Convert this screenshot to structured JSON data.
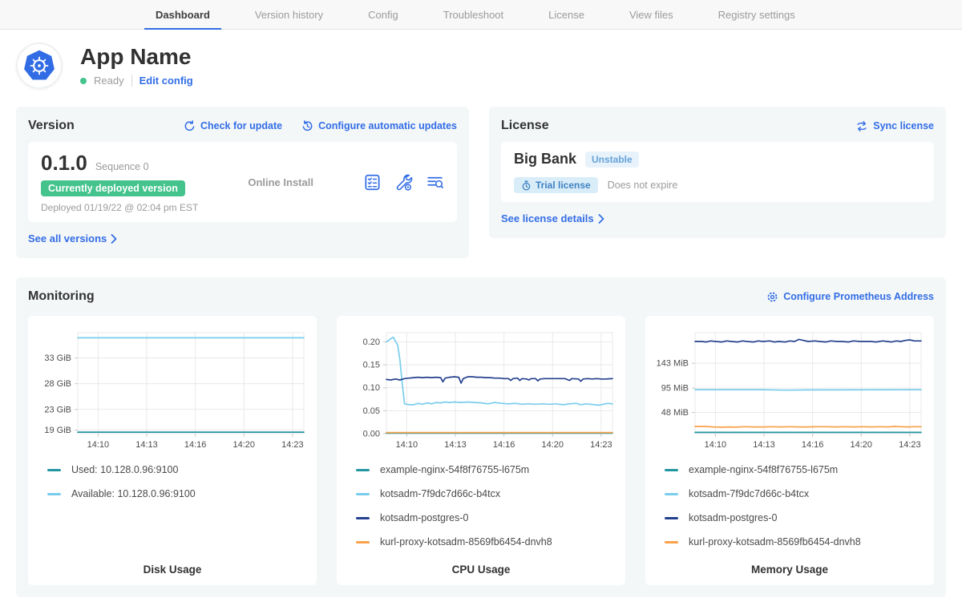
{
  "nav": {
    "tabs": [
      {
        "label": "Dashboard",
        "active": true
      },
      {
        "label": "Version history",
        "active": false
      },
      {
        "label": "Config",
        "active": false
      },
      {
        "label": "Troubleshoot",
        "active": false
      },
      {
        "label": "License",
        "active": false
      },
      {
        "label": "View files",
        "active": false
      },
      {
        "label": "Registry settings",
        "active": false
      }
    ]
  },
  "app": {
    "name": "App Name",
    "status": "Ready",
    "edit_config_label": "Edit config"
  },
  "version_card": {
    "title": "Version",
    "check_update_label": "Check for update",
    "auto_updates_label": "Configure automatic updates",
    "version_number": "0.1.0",
    "sequence_label": "Sequence 0",
    "deployed_badge": "Currently deployed version",
    "deployed_text": "Deployed 01/19/22 @ 02:04 pm EST",
    "install_type": "Online Install",
    "see_all_label": "See all versions"
  },
  "license_card": {
    "title": "License",
    "sync_label": "Sync license",
    "customer_name": "Big Bank",
    "channel": "Unstable",
    "type_label": "Trial license",
    "expiry_text": "Does not expire",
    "details_label": "See license details"
  },
  "monitoring": {
    "title": "Monitoring",
    "configure_prometheus_label": "Configure Prometheus Address"
  },
  "colors": {
    "accent_blue": "#326de6",
    "deployed_green": "#44c38c",
    "channel_badge_blue": "#65a3d9",
    "status_green": "#44c38c",
    "series_teal": "#2396a0",
    "series_light_blue": "#79cdec",
    "series_navy": "#24418e",
    "series_orange": "#f9a14b"
  },
  "chart_data": [
    {
      "type": "line",
      "title": "Disk Usage",
      "y_axis": {
        "min": 18.3,
        "max": 37.9,
        "ticks": [
          {
            "value": 19,
            "label": "19 GiB"
          },
          {
            "value": 23,
            "label": "23 GiB"
          },
          {
            "value": 28,
            "label": "28 GiB"
          },
          {
            "value": 33,
            "label": "33 GiB"
          }
        ]
      },
      "x_axis": {
        "ticks": [
          {
            "pos": 9,
            "label": "14:10"
          },
          {
            "pos": 30.5,
            "label": "14:13"
          },
          {
            "pos": 52,
            "label": "14:16"
          },
          {
            "pos": 73.5,
            "label": "14:20"
          },
          {
            "pos": 95,
            "label": "14:23"
          }
        ]
      },
      "series": [
        {
          "name": "Used: 10.128.0.96:9100",
          "color": "#2396a0",
          "points": [
            [
              0,
              18.6
            ],
            [
              100,
              18.6
            ]
          ]
        },
        {
          "name": "Available: 10.128.0.96:9100",
          "color": "#79cdec",
          "points": [
            [
              0,
              36.9
            ],
            [
              100,
              36.9
            ]
          ]
        }
      ]
    },
    {
      "type": "line",
      "title": "CPU Usage",
      "y_axis": {
        "min": 0,
        "max": 0.22,
        "ticks": [
          {
            "value": 0.0,
            "label": "0.00"
          },
          {
            "value": 0.05,
            "label": "0.05"
          },
          {
            "value": 0.1,
            "label": "0.10"
          },
          {
            "value": 0.15,
            "label": "0.15"
          },
          {
            "value": 0.2,
            "label": "0.20"
          }
        ]
      },
      "x_axis": {
        "ticks": [
          {
            "pos": 9,
            "label": "14:10"
          },
          {
            "pos": 30.5,
            "label": "14:13"
          },
          {
            "pos": 52,
            "label": "14:16"
          },
          {
            "pos": 73.5,
            "label": "14:20"
          },
          {
            "pos": 95,
            "label": "14:23"
          }
        ]
      },
      "series": [
        {
          "name": "example-nginx-54f8f76755-l675m",
          "color": "#2396a0",
          "points": [
            [
              0,
              0.001
            ],
            [
              100,
              0.001
            ]
          ]
        },
        {
          "name": "kotsadm-7f9dc7d66c-b4tcx",
          "color": "#79cdec",
          "points": [
            [
              0,
              0.2
            ],
            [
              2,
              0.207
            ],
            [
              3,
              0.21
            ],
            [
              5,
              0.193
            ],
            [
              6,
              0.16
            ],
            [
              7,
              0.11
            ],
            [
              8,
              0.065
            ],
            [
              10,
              0.063
            ],
            [
              12,
              0.063
            ],
            [
              14,
              0.066
            ],
            [
              16,
              0.064
            ],
            [
              18,
              0.067
            ],
            [
              20,
              0.065
            ],
            [
              22,
              0.068
            ],
            [
              24,
              0.067
            ],
            [
              26,
              0.069
            ],
            [
              28,
              0.068
            ],
            [
              30,
              0.069
            ],
            [
              33,
              0.068
            ],
            [
              36,
              0.069
            ],
            [
              39,
              0.068
            ],
            [
              42,
              0.067
            ],
            [
              45,
              0.065
            ],
            [
              48,
              0.068
            ],
            [
              51,
              0.066
            ],
            [
              54,
              0.065
            ],
            [
              57,
              0.066
            ],
            [
              60,
              0.064
            ],
            [
              63,
              0.065
            ],
            [
              66,
              0.064
            ],
            [
              69,
              0.065
            ],
            [
              72,
              0.064
            ],
            [
              75,
              0.065
            ],
            [
              78,
              0.063
            ],
            [
              81,
              0.065
            ],
            [
              84,
              0.066
            ],
            [
              86,
              0.063
            ],
            [
              88,
              0.065
            ],
            [
              90,
              0.064
            ],
            [
              92,
              0.063
            ],
            [
              94,
              0.062
            ],
            [
              96,
              0.064
            ],
            [
              98,
              0.066
            ],
            [
              100,
              0.065
            ]
          ]
        },
        {
          "name": "kotsadm-postgres-0",
          "color": "#24418e",
          "points": [
            [
              0,
              0.118
            ],
            [
              2,
              0.117
            ],
            [
              4,
              0.119
            ],
            [
              6,
              0.117
            ],
            [
              8,
              0.12
            ],
            [
              10,
              0.121
            ],
            [
              12,
              0.122
            ],
            [
              14,
              0.123
            ],
            [
              16,
              0.122
            ],
            [
              18,
              0.123
            ],
            [
              20,
              0.122
            ],
            [
              22,
              0.123
            ],
            [
              24,
              0.122
            ],
            [
              25,
              0.113
            ],
            [
              26,
              0.121
            ],
            [
              28,
              0.123
            ],
            [
              30,
              0.124
            ],
            [
              32,
              0.123
            ],
            [
              33,
              0.11
            ],
            [
              34,
              0.12
            ],
            [
              36,
              0.124
            ],
            [
              38,
              0.124
            ],
            [
              40,
              0.123
            ],
            [
              42,
              0.123
            ],
            [
              44,
              0.122
            ],
            [
              46,
              0.122
            ],
            [
              48,
              0.121
            ],
            [
              50,
              0.121
            ],
            [
              52,
              0.12
            ],
            [
              54,
              0.12
            ],
            [
              55,
              0.116
            ],
            [
              56,
              0.12
            ],
            [
              58,
              0.121
            ],
            [
              59,
              0.116
            ],
            [
              60,
              0.12
            ],
            [
              62,
              0.119
            ],
            [
              63,
              0.117
            ],
            [
              64,
              0.12
            ],
            [
              66,
              0.12
            ],
            [
              67,
              0.115
            ],
            [
              68,
              0.119
            ],
            [
              70,
              0.12
            ],
            [
              73,
              0.12
            ],
            [
              76,
              0.12
            ],
            [
              79,
              0.12
            ],
            [
              81,
              0.116
            ],
            [
              82,
              0.12
            ],
            [
              85,
              0.119
            ],
            [
              86,
              0.114
            ],
            [
              87,
              0.119
            ],
            [
              89,
              0.12
            ],
            [
              91,
              0.119
            ],
            [
              93,
              0.12
            ],
            [
              95,
              0.119
            ],
            [
              97,
              0.119
            ],
            [
              100,
              0.12
            ]
          ]
        },
        {
          "name": "kurl-proxy-kotsadm-8569fb6454-dnvh8",
          "color": "#f9a14b",
          "points": [
            [
              0,
              0.0025
            ],
            [
              100,
              0.0025
            ]
          ]
        }
      ]
    },
    {
      "type": "line",
      "title": "Memory Usage",
      "y_axis": {
        "min": 7,
        "max": 202,
        "ticks": [
          {
            "value": 48,
            "label": "48 MiB"
          },
          {
            "value": 95,
            "label": "95 MiB"
          },
          {
            "value": 143,
            "label": "143 MiB"
          }
        ]
      },
      "x_axis": {
        "ticks": [
          {
            "pos": 9,
            "label": "14:10"
          },
          {
            "pos": 30.5,
            "label": "14:13"
          },
          {
            "pos": 52,
            "label": "14:16"
          },
          {
            "pos": 73.5,
            "label": "14:20"
          },
          {
            "pos": 95,
            "label": "14:23"
          }
        ]
      },
      "series": [
        {
          "name": "example-nginx-54f8f76755-l675m",
          "color": "#2396a0",
          "points": [
            [
              0,
              9.5
            ],
            [
              100,
              9.5
            ]
          ]
        },
        {
          "name": "kotsadm-7f9dc7d66c-b4tcx",
          "color": "#79cdec",
          "points": [
            [
              0,
              92
            ],
            [
              30,
              92
            ],
            [
              40,
              91
            ],
            [
              50,
              91.5
            ],
            [
              100,
              92
            ]
          ]
        },
        {
          "name": "kotsadm-postgres-0",
          "color": "#24418e",
          "points": [
            [
              0,
              185
            ],
            [
              3,
              185
            ],
            [
              5,
              184
            ],
            [
              7,
              186
            ],
            [
              9,
              185
            ],
            [
              12,
              184
            ],
            [
              14,
              186
            ],
            [
              16,
              185
            ],
            [
              19,
              184
            ],
            [
              21,
              186
            ],
            [
              23,
              185
            ],
            [
              26,
              184
            ],
            [
              28,
              186
            ],
            [
              30,
              185
            ],
            [
              33,
              186
            ],
            [
              35,
              184
            ],
            [
              37,
              185
            ],
            [
              40,
              184
            ],
            [
              42,
              186
            ],
            [
              44,
              185
            ],
            [
              46,
              189
            ],
            [
              48,
              187
            ],
            [
              50,
              185
            ],
            [
              53,
              186
            ],
            [
              55,
              185
            ],
            [
              58,
              184
            ],
            [
              60,
              186
            ],
            [
              63,
              185
            ],
            [
              65,
              185
            ],
            [
              68,
              184
            ],
            [
              70,
              186
            ],
            [
              73,
              185
            ],
            [
              75,
              185
            ],
            [
              78,
              185
            ],
            [
              80,
              184
            ],
            [
              83,
              186
            ],
            [
              85,
              185
            ],
            [
              87,
              184
            ],
            [
              89,
              186
            ],
            [
              91,
              185
            ],
            [
              93,
              187
            ],
            [
              95,
              188
            ],
            [
              97,
              186
            ],
            [
              100,
              186
            ]
          ]
        },
        {
          "name": "kurl-proxy-kotsadm-8569fb6454-dnvh8",
          "color": "#f9a14b",
          "points": [
            [
              0,
              21
            ],
            [
              5,
              21
            ],
            [
              8,
              20
            ],
            [
              12,
              19.5
            ],
            [
              15,
              20
            ],
            [
              18,
              19.5
            ],
            [
              22,
              20.5
            ],
            [
              26,
              20
            ],
            [
              30,
              20
            ],
            [
              34,
              20.5
            ],
            [
              38,
              20
            ],
            [
              42,
              20.5
            ],
            [
              46,
              20
            ],
            [
              50,
              20
            ],
            [
              54,
              20.5
            ],
            [
              58,
              20.5
            ],
            [
              62,
              20
            ],
            [
              66,
              20.5
            ],
            [
              70,
              20
            ],
            [
              74,
              20.5
            ],
            [
              78,
              20
            ],
            [
              82,
              20.5
            ],
            [
              85,
              20
            ],
            [
              88,
              21
            ],
            [
              91,
              20.5
            ],
            [
              94,
              20
            ],
            [
              97,
              20.5
            ],
            [
              100,
              20.5
            ]
          ]
        }
      ]
    }
  ]
}
